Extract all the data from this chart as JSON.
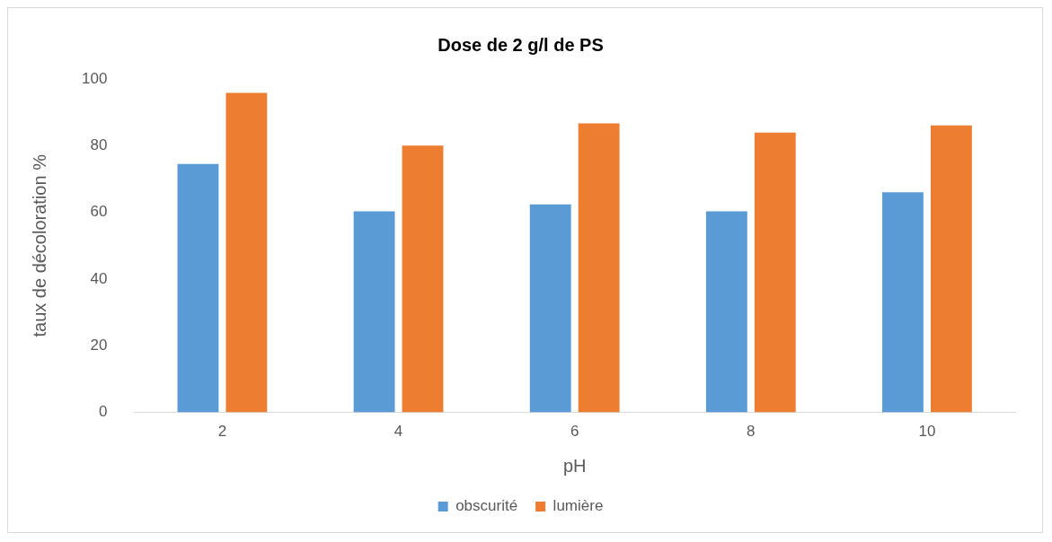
{
  "chart_data": {
    "type": "bar",
    "title": "Dose de 2 g/l de PS",
    "xlabel": "pH",
    "ylabel": "taux de décoloration %",
    "categories": [
      "2",
      "4",
      "6",
      "8",
      "10"
    ],
    "series": [
      {
        "name": "obscurité",
        "color": "#5b9bd5",
        "values": [
          74.5,
          60.3,
          62.4,
          60.3,
          66
        ]
      },
      {
        "name": "lumière",
        "color": "#ed7d31",
        "values": [
          95.8,
          80,
          86.7,
          83.9,
          86.1
        ]
      }
    ],
    "ylim": [
      0,
      100
    ],
    "yticks": [
      0,
      20,
      40,
      60,
      80,
      100
    ],
    "grid": false,
    "legend": "bottom"
  }
}
